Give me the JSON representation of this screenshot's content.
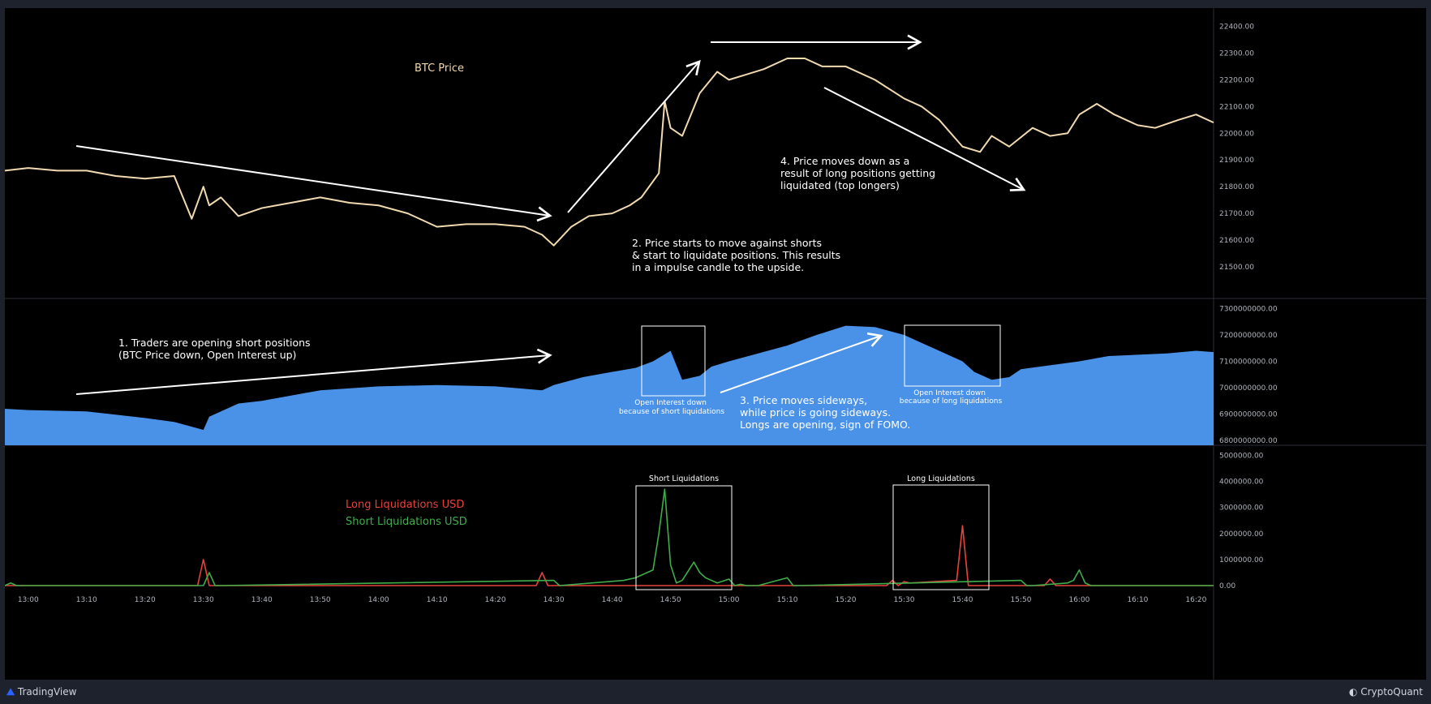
{
  "footer": {
    "left_brand": "TradingView",
    "right_brand": "CryptoQuant"
  },
  "colors": {
    "price": "#f1d9b0",
    "open_interest": "#4a91e8",
    "long_liq": "#e8423a",
    "short_liq": "#3fae4a",
    "axis_text": "#b2b5be",
    "background": "#000000"
  },
  "chart_data": [
    {
      "type": "line",
      "panel": "price",
      "title": "BTC Price",
      "ylim": [
        21400,
        22450
      ],
      "yticks": [
        "22400.00",
        "22300.00",
        "22200.00",
        "22100.00",
        "22000.00",
        "21900.00",
        "21800.00",
        "21700.00",
        "21600.00",
        "21500.00"
      ],
      "x_range": [
        "12:56",
        "16:23"
      ],
      "series": [
        {
          "x": [
            "12:56",
            "13:00",
            "13:05",
            "13:10",
            "13:15",
            "13:20",
            "13:25",
            "13:28",
            "13:30",
            "13:31",
            "13:33",
            "13:36",
            "13:40",
            "13:45",
            "13:50",
            "13:55",
            "14:00",
            "14:05",
            "14:10",
            "14:15",
            "14:20",
            "14:25",
            "14:28",
            "14:30",
            "14:33",
            "14:36",
            "14:40",
            "14:43",
            "14:45",
            "14:48",
            "14:49",
            "14:50",
            "14:52",
            "14:55",
            "14:58",
            "15:00",
            "15:03",
            "15:06",
            "15:10",
            "15:13",
            "15:16",
            "15:20",
            "15:25",
            "15:30",
            "15:33",
            "15:36",
            "15:40",
            "15:43",
            "15:45",
            "15:48",
            "15:52",
            "15:55",
            "15:58",
            "16:00",
            "16:03",
            "16:06",
            "16:10",
            "16:13",
            "16:17",
            "16:20",
            "16:23"
          ],
          "values": [
            21860,
            21870,
            21860,
            21860,
            21840,
            21830,
            21840,
            21680,
            21800,
            21730,
            21760,
            21690,
            21720,
            21740,
            21760,
            21740,
            21730,
            21700,
            21650,
            21660,
            21660,
            21650,
            21620,
            21580,
            21650,
            21690,
            21700,
            21730,
            21760,
            21850,
            22120,
            22020,
            21990,
            22150,
            22230,
            22200,
            22220,
            22240,
            22280,
            22280,
            22250,
            22250,
            22200,
            22130,
            22100,
            22050,
            21950,
            21930,
            21990,
            21950,
            22020,
            21990,
            22000,
            22070,
            22110,
            22070,
            22030,
            22020,
            22050,
            22070,
            22040
          ]
        }
      ]
    },
    {
      "type": "area",
      "panel": "open_interest",
      "ylim": [
        6800000000,
        7320000000
      ],
      "yticks": [
        "7300000000.00",
        "7200000000.00",
        "7100000000.00",
        "7000000000.00",
        "6900000000.00",
        "6800000000.00"
      ],
      "series": [
        {
          "name": "",
          "x": [
            "12:56",
            "13:00",
            "13:10",
            "13:20",
            "13:25",
            "13:30",
            "13:31",
            "13:33",
            "13:36",
            "13:40",
            "13:50",
            "14:00",
            "14:10",
            "14:20",
            "14:28",
            "14:30",
            "14:35",
            "14:40",
            "14:44",
            "14:47",
            "14:50",
            "14:52",
            "14:55",
            "14:57",
            "15:00",
            "15:05",
            "15:10",
            "15:15",
            "15:20",
            "15:25",
            "15:30",
            "15:35",
            "15:40",
            "15:42",
            "15:45",
            "15:48",
            "15:50",
            "15:55",
            "16:00",
            "16:05",
            "16:10",
            "16:15",
            "16:20",
            "16:23"
          ],
          "values": [
            6920000000,
            6915000000,
            6910000000,
            6885000000,
            6870000000,
            6840000000,
            6890000000,
            6910000000,
            6940000000,
            6950000000,
            6990000000,
            7005000000,
            7010000000,
            7005000000,
            6990000000,
            7010000000,
            7040000000,
            7060000000,
            7075000000,
            7100000000,
            7140000000,
            7030000000,
            7045000000,
            7080000000,
            7100000000,
            7130000000,
            7160000000,
            7200000000,
            7235000000,
            7230000000,
            7200000000,
            7150000000,
            7100000000,
            7060000000,
            7030000000,
            7040000000,
            7070000000,
            7085000000,
            7100000000,
            7120000000,
            7125000000,
            7130000000,
            7140000000,
            7135000000
          ]
        }
      ]
    },
    {
      "type": "line",
      "panel": "liquidations",
      "ylim": [
        0,
        5200000
      ],
      "yticks": [
        "5000000.00",
        "4000000.00",
        "3000000.00",
        "2000000.00",
        "1000000.00",
        "0.00"
      ],
      "xticks": [
        "13:00",
        "13:10",
        "13:20",
        "13:30",
        "13:40",
        "13:50",
        "14:00",
        "14:10",
        "14:20",
        "14:30",
        "14:40",
        "14:50",
        "15:00",
        "15:10",
        "15:20",
        "15:30",
        "15:40",
        "15:50",
        "16:00",
        "16:10",
        "16:20"
      ],
      "series": [
        {
          "name": "Long Liquidations USD",
          "x": [
            "12:56",
            "13:29",
            "13:30",
            "13:31",
            "13:32",
            "13:33",
            "13:34",
            "13:35",
            "14:27",
            "14:28",
            "14:29",
            "15:27",
            "15:28",
            "15:29",
            "15:30",
            "15:31",
            "15:35",
            "15:39",
            "15:40",
            "15:41",
            "15:42",
            "15:43",
            "15:54",
            "15:55",
            "15:56",
            "16:23"
          ],
          "values": [
            0,
            0,
            1000000,
            0,
            0,
            0,
            0,
            0,
            0,
            500000,
            0,
            0,
            200000,
            0,
            150000,
            100000,
            150000,
            200000,
            2300000,
            0,
            0,
            0,
            0,
            250000,
            0,
            0
          ]
        },
        {
          "name": "Short Liquidations USD",
          "x": [
            "12:56",
            "12:57",
            "12:58",
            "13:30",
            "13:31",
            "13:32",
            "13:33",
            "14:30",
            "14:31",
            "14:42",
            "14:44",
            "14:47",
            "14:48",
            "14:49",
            "14:50",
            "14:51",
            "14:52",
            "14:54",
            "14:55",
            "14:56",
            "14:57",
            "14:58",
            "15:00",
            "15:01",
            "15:02",
            "15:03",
            "15:05",
            "15:10",
            "15:11",
            "15:12",
            "15:50",
            "15:51",
            "15:52",
            "15:58",
            "15:59",
            "16:00",
            "16:01",
            "16:02",
            "16:23"
          ],
          "values": [
            0,
            100000,
            0,
            0,
            500000,
            0,
            0,
            200000,
            0,
            200000,
            300000,
            600000,
            2000000,
            3700000,
            800000,
            100000,
            200000,
            900000,
            500000,
            300000,
            200000,
            100000,
            250000,
            0,
            50000,
            0,
            0,
            300000,
            0,
            0,
            200000,
            0,
            0,
            100000,
            200000,
            600000,
            100000,
            0,
            0
          ]
        }
      ]
    }
  ],
  "annotations": {
    "btc_label": "BTC Price",
    "note1": [
      "1. Traders are opening short positions",
      "(BTC Price down, Open Interest up)"
    ],
    "note2": [
      "2. Price starts to move against shorts",
      "& start to liquidate positions. This results",
      "in a impulse candle to the upside."
    ],
    "note3": [
      "3. Price moves sideways,",
      "while price is going sideways.",
      "Longs are opening, sign of FOMO."
    ],
    "note4": [
      "4. Price moves down as a",
      "result of long positions getting",
      "liquidated (top longers)"
    ],
    "oi_short_caption": [
      "Open Interest down",
      "because of short liquidations"
    ],
    "oi_long_caption": [
      "Open Interest down",
      "because of long liquidations"
    ],
    "box_short_liq": "Short Liquidations",
    "box_long_liq": "Long Liquidations",
    "legend_long": "Long Liquidations USD",
    "legend_short": "Short Liquidations USD"
  }
}
